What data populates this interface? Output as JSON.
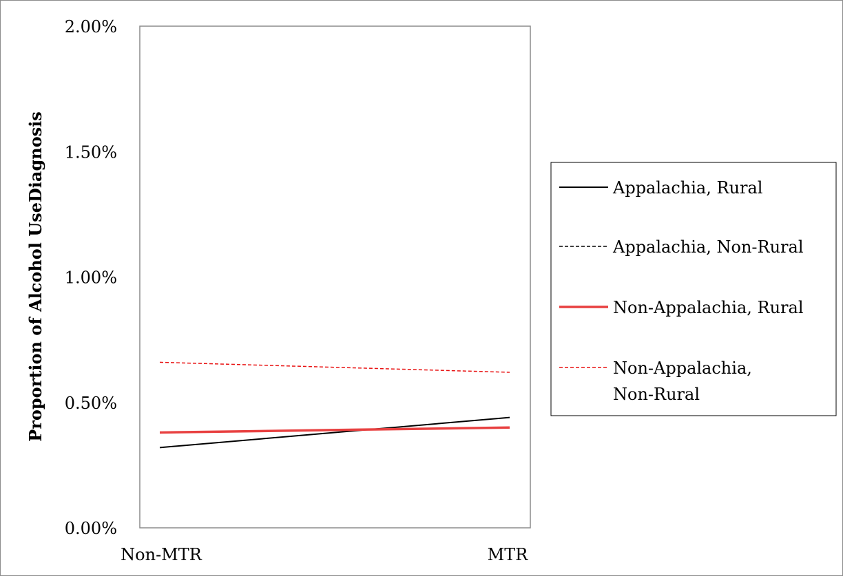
{
  "chart_data": {
    "type": "line",
    "title": "",
    "xlabel": "",
    "ylabel": "Proportion of Alcohol UseDiagnosis",
    "categories": [
      "Non-MTR",
      "MTR"
    ],
    "ylim": [
      0,
      2.0
    ],
    "y_ticks": [
      "0.00%",
      "0.50%",
      "1.00%",
      "1.50%",
      "2.00%"
    ],
    "y_tick_values": [
      0,
      0.5,
      1.0,
      1.5,
      2.0
    ],
    "grid": false,
    "legend_position": "right",
    "series": [
      {
        "name": "Appalachia, Rural",
        "values": [
          0.32,
          0.44
        ],
        "color": "#000000",
        "dashed": false,
        "width": 2
      },
      {
        "name": "Appalachia, Non-Rural",
        "values": [
          0.38,
          0.4
        ],
        "color": "#000000",
        "dashed": true,
        "width": 1.5
      },
      {
        "name": "Non-Appalachia, Rural",
        "values": [
          0.38,
          0.4
        ],
        "color": "#e84040",
        "dashed": false,
        "width": 3.5
      },
      {
        "name": "Non-Appalachia, Non-Rural",
        "values": [
          0.66,
          0.62
        ],
        "color": "#e81010",
        "dashed": true,
        "width": 1.5
      }
    ]
  }
}
